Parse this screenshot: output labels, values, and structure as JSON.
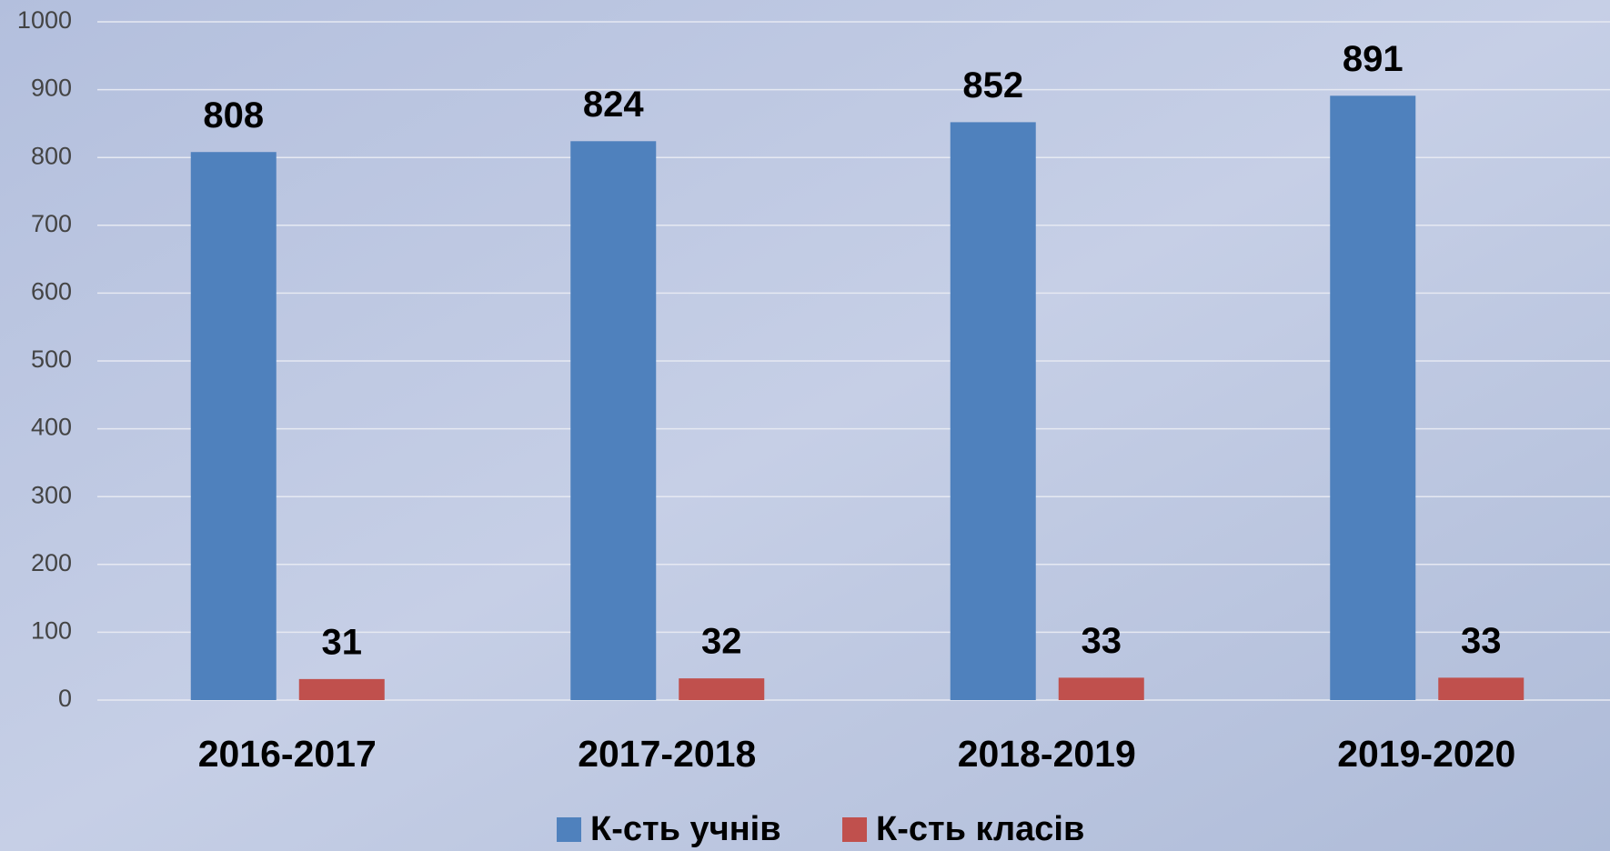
{
  "chart_data": {
    "type": "bar",
    "categories": [
      "2016-2017",
      "2017-2018",
      "2018-2019",
      "2019-2020"
    ],
    "series": [
      {
        "name": "К-сть учнів",
        "color": "#4f81bd",
        "values": [
          808,
          824,
          852,
          891
        ]
      },
      {
        "name": "К-сть класів",
        "color": "#c0504d",
        "values": [
          31,
          32,
          33,
          33
        ]
      }
    ],
    "ylim": [
      0,
      1000
    ],
    "yticks": [
      0,
      100,
      200,
      300,
      400,
      500,
      600,
      700,
      800,
      900,
      1000
    ],
    "grid": true,
    "legend": "bottom"
  }
}
